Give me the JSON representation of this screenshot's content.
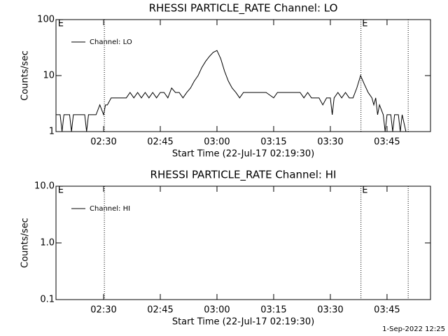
{
  "chart_data": [
    {
      "type": "line",
      "title": "RHESSI PARTICLE_RATE Channel: LO",
      "xlabel": "Start Time (22-Jul-17 02:19:30)",
      "ylabel": "Counts/sec",
      "log_y": true,
      "legend": "upper left",
      "xlim": [
        137.4,
        236.5
      ],
      "xticks": [
        {
          "value": 150,
          "label": "02:30"
        },
        {
          "value": 165,
          "label": "02:45"
        },
        {
          "value": 180,
          "label": "03:00"
        },
        {
          "value": 195,
          "label": "03:15"
        },
        {
          "value": 210,
          "label": "03:30"
        },
        {
          "value": 225,
          "label": "03:45"
        }
      ],
      "ylim": [
        1,
        100
      ],
      "yticks": [
        1,
        10,
        100
      ],
      "vlines": [
        150.2,
        218.1,
        230.6
      ],
      "annotations": [
        {
          "x": 137.9,
          "label": "E"
        },
        {
          "x": 218.4,
          "label": "E"
        }
      ],
      "x": [
        137.5,
        138.5,
        139,
        139.5,
        141,
        141.5,
        142,
        145,
        145.5,
        146,
        147,
        147.5,
        148,
        149,
        150,
        150.5,
        151,
        152,
        155,
        156,
        157,
        158,
        159,
        160,
        161,
        162,
        163,
        164,
        165,
        166,
        167,
        168,
        169,
        170,
        171,
        172,
        173,
        174,
        175,
        176,
        177,
        178,
        179,
        180,
        181,
        182,
        183,
        184,
        185,
        186,
        187,
        190,
        193,
        195,
        196,
        200,
        202,
        203,
        204,
        205,
        207,
        208,
        209,
        210,
        210.5,
        211,
        212,
        213,
        214,
        215,
        216,
        217,
        218,
        219,
        220,
        221,
        221.5,
        222,
        222.5,
        223,
        224,
        224.5,
        225,
        226,
        226.5,
        227,
        228,
        228.5,
        229,
        230
      ],
      "series": [
        {
          "name": "Channel: LO",
          "color": "#000000",
          "values": [
            2,
            2,
            1,
            2,
            2,
            1,
            2,
            2,
            1,
            2,
            2,
            2,
            2,
            3,
            2,
            3,
            3,
            4,
            4,
            4,
            5,
            4,
            5,
            4,
            5,
            4,
            5,
            4,
            5,
            5,
            4,
            6,
            5,
            5,
            4,
            5,
            6,
            8,
            10,
            14,
            18,
            22,
            26,
            28,
            20,
            12,
            8,
            6,
            5,
            4,
            5,
            5,
            5,
            4,
            5,
            5,
            5,
            4,
            5,
            4,
            4,
            3,
            4,
            4,
            2,
            4,
            5,
            4,
            5,
            4,
            4,
            6,
            10,
            7,
            5,
            4,
            3,
            4,
            2,
            3,
            2,
            1,
            2,
            2,
            1,
            2,
            2,
            1,
            2,
            1
          ]
        }
      ]
    },
    {
      "type": "line",
      "title": "RHESSI PARTICLE_RATE Channel: HI",
      "xlabel": "Start Time (22-Jul-17 02:19:30)",
      "ylabel": "Counts/sec",
      "log_y": true,
      "legend": "upper left",
      "xlim": [
        137.4,
        236.5
      ],
      "xticks": [
        {
          "value": 150,
          "label": "02:30"
        },
        {
          "value": 165,
          "label": "02:45"
        },
        {
          "value": 180,
          "label": "03:00"
        },
        {
          "value": 195,
          "label": "03:15"
        },
        {
          "value": 210,
          "label": "03:30"
        },
        {
          "value": 225,
          "label": "03:45"
        }
      ],
      "ylim": [
        0.1,
        10
      ],
      "yticks": [
        0.1,
        {
          "value": 1,
          "label": "1.0"
        },
        {
          "value": 10,
          "label": "10.0"
        }
      ],
      "vlines": [
        150.2,
        218.1,
        230.6
      ],
      "annotations": [
        {
          "x": 137.9,
          "label": "E"
        },
        {
          "x": 218.4,
          "label": "E"
        }
      ],
      "x": [],
      "series": [
        {
          "name": "Channel: HI",
          "color": "#000000",
          "values": []
        }
      ]
    }
  ],
  "footer": "1-Sep-2022 12:25"
}
